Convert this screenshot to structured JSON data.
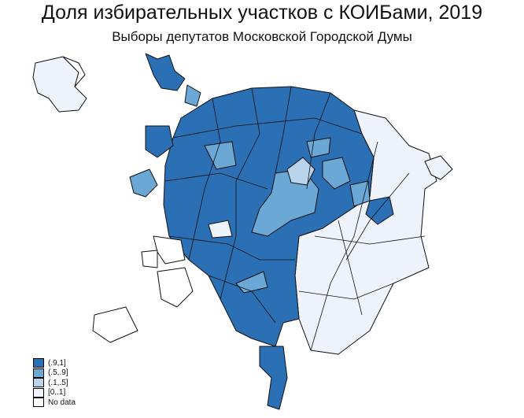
{
  "title": "Доля избирательных участков с КОИБами, 2019",
  "subtitle": "Выборы депутатов Московской Городской Думы",
  "legend": [
    {
      "label": "(.9,1]",
      "color": "#2b6fb5"
    },
    {
      "label": "(.5,.9]",
      "color": "#6ba8d6"
    },
    {
      "label": "(.1,.5]",
      "color": "#b8d3ea"
    },
    {
      "label": "[0,.1]",
      "color": "#eef2fa"
    },
    {
      "label": "No data",
      "color": "#ffffff"
    }
  ],
  "map": {
    "stroke": "#111111"
  }
}
